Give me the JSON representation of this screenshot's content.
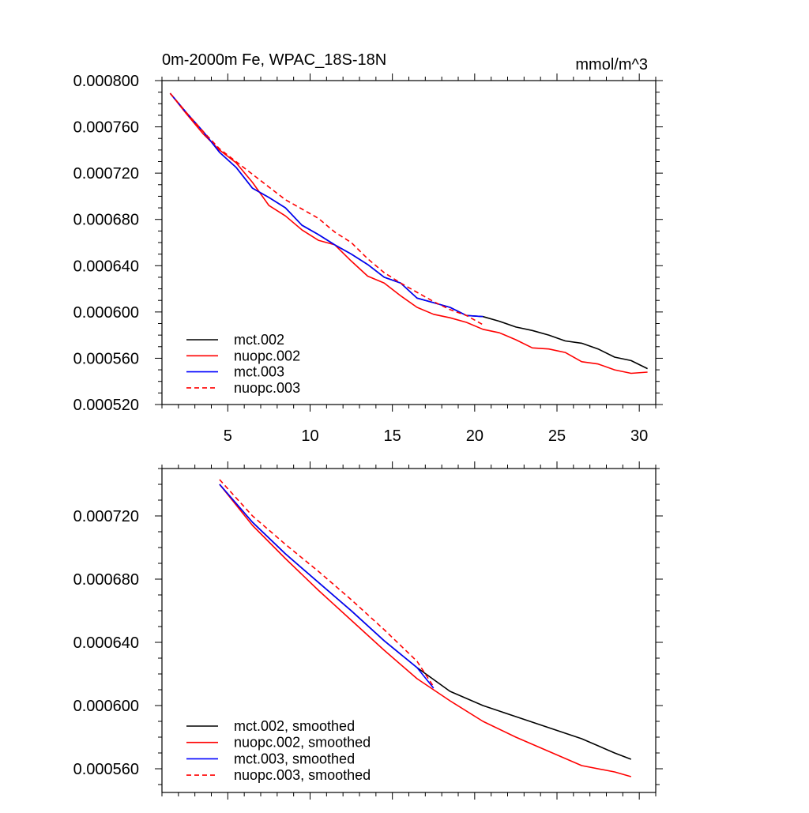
{
  "chart_data": [
    {
      "type": "line",
      "title": "0m-2000m Fe, WPAC_18S-18N",
      "units": "mmol/m^3",
      "xlabel": "",
      "ylabel": "",
      "xlim": [
        1,
        31
      ],
      "ylim": [
        0.00052,
        0.0008
      ],
      "xticks": [
        5,
        10,
        15,
        20,
        25,
        30
      ],
      "xtick_labels": [
        "5",
        "10",
        "15",
        "20",
        "25",
        "30"
      ],
      "yticks": [
        0.00052,
        0.00056,
        0.0006,
        0.00064,
        0.00068,
        0.00072,
        0.00076,
        0.0008
      ],
      "ytick_labels": [
        "0.000520",
        "0.000560",
        "0.000600",
        "0.000640",
        "0.000680",
        "0.000720",
        "0.000760",
        "0.000800"
      ],
      "legend_position": "bottom-left",
      "series": [
        {
          "name": "mct.002",
          "color": "#000000",
          "dash": "solid",
          "x": [
            1.5,
            2.5,
            3.5,
            4.5,
            5.5,
            6.5,
            7.5,
            8.5,
            9.5,
            10.5,
            11.5,
            12.5,
            13.5,
            14.5,
            15.5,
            16.5,
            17.5,
            18.5,
            19.5,
            20.5,
            21.5,
            22.5,
            23.5,
            24.5,
            25.5,
            26.5,
            27.5,
            28.5,
            29.5,
            30.5
          ],
          "values": [
            0.000789,
            0.000772,
            0.000756,
            0.000738,
            0.000725,
            0.000707,
            0.000699,
            0.00069,
            0.000675,
            0.000667,
            0.000658,
            0.00065,
            0.000641,
            0.00063,
            0.000625,
            0.000612,
            0.000608,
            0.000604,
            0.000597,
            0.000596,
            0.000592,
            0.000587,
            0.000584,
            0.00058,
            0.000575,
            0.000573,
            0.000568,
            0.000561,
            0.000558,
            0.000551
          ]
        },
        {
          "name": "nuopc.002",
          "color": "#ff0000",
          "dash": "solid",
          "x": [
            1.5,
            2.5,
            3.5,
            4.5,
            5.5,
            6.5,
            7.5,
            8.5,
            9.5,
            10.5,
            11.5,
            12.5,
            13.5,
            14.5,
            15.5,
            16.5,
            17.5,
            18.5,
            19.5,
            20.5,
            21.5,
            22.5,
            23.5,
            24.5,
            25.5,
            26.5,
            27.5,
            28.5,
            29.5,
            30.5
          ],
          "values": [
            0.000789,
            0.000771,
            0.000754,
            0.00074,
            0.000729,
            0.000712,
            0.000692,
            0.000683,
            0.000671,
            0.000662,
            0.000658,
            0.000644,
            0.000631,
            0.000625,
            0.000614,
            0.000604,
            0.000598,
            0.000595,
            0.000591,
            0.000585,
            0.000582,
            0.000576,
            0.000569,
            0.000568,
            0.000565,
            0.000557,
            0.000555,
            0.00055,
            0.000547,
            0.000548
          ]
        },
        {
          "name": "mct.003",
          "color": "#0000ff",
          "dash": "solid",
          "x": [
            1.5,
            2.5,
            3.5,
            4.5,
            5.5,
            6.5,
            7.5,
            8.5,
            9.5,
            10.5,
            11.5,
            12.5,
            13.5,
            14.5,
            15.5,
            16.5,
            17.5,
            18.5,
            19.5,
            20.5
          ],
          "values": [
            0.000789,
            0.000772,
            0.000756,
            0.000738,
            0.000725,
            0.000707,
            0.000699,
            0.00069,
            0.000675,
            0.000667,
            0.000658,
            0.00065,
            0.000641,
            0.00063,
            0.000625,
            0.000612,
            0.000608,
            0.000604,
            0.000597,
            0.000596
          ]
        },
        {
          "name": "nuopc.003",
          "color": "#ff0000",
          "dash": "dashed",
          "x": [
            1.5,
            2.5,
            3.5,
            4.5,
            5.5,
            6.5,
            7.5,
            8.5,
            9.5,
            10.5,
            11.5,
            12.5,
            13.5,
            14.5,
            15.5,
            16.5,
            17.5,
            18.5,
            19.5,
            20.5
          ],
          "values": [
            0.000789,
            0.000772,
            0.000756,
            0.000741,
            0.00073,
            0.000719,
            0.000708,
            0.000697,
            0.000689,
            0.000681,
            0.000669,
            0.00066,
            0.000646,
            0.000634,
            0.000625,
            0.000617,
            0.000609,
            0.000602,
            0.000597,
            0.000589
          ]
        }
      ]
    },
    {
      "type": "line",
      "title": "",
      "xlabel": "",
      "ylabel": "",
      "xlim": [
        1,
        31
      ],
      "ylim": [
        0.000545,
        0.00075
      ],
      "xticks": [
        5,
        10,
        15,
        20,
        25,
        30
      ],
      "yticks": [
        0.00056,
        0.0006,
        0.00064,
        0.00068,
        0.00072
      ],
      "ytick_labels": [
        "0.000560",
        "0.000600",
        "0.000640",
        "0.000680",
        "0.000720"
      ],
      "legend_position": "bottom-left",
      "series": [
        {
          "name": "mct.002, smoothed",
          "color": "#000000",
          "dash": "solid",
          "x": [
            4.5,
            6.5,
            8.5,
            10.5,
            12.5,
            14.5,
            16.5,
            18.5,
            20.5,
            22.5,
            24.5,
            26.5,
            28.5,
            29.5
          ],
          "values": [
            0.00074,
            0.000716,
            0.000696,
            0.000678,
            0.00066,
            0.000641,
            0.000624,
            0.000609,
            0.0006,
            0.000593,
            0.000586,
            0.000579,
            0.00057,
            0.000566
          ]
        },
        {
          "name": "nuopc.002, smoothed",
          "color": "#ff0000",
          "dash": "solid",
          "x": [
            4.5,
            6.5,
            8.5,
            10.5,
            12.5,
            14.5,
            16.5,
            18.5,
            20.5,
            22.5,
            24.5,
            26.5,
            28.5,
            29.5
          ],
          "values": [
            0.00074,
            0.000714,
            0.000693,
            0.000673,
            0.000654,
            0.000635,
            0.000617,
            0.000603,
            0.00059,
            0.00058,
            0.000571,
            0.000562,
            0.000558,
            0.000555
          ]
        },
        {
          "name": "mct.003, smoothed",
          "color": "#0000ff",
          "dash": "solid",
          "x": [
            4.5,
            6.5,
            8.5,
            10.5,
            12.5,
            14.5,
            16.5,
            17.5
          ],
          "values": [
            0.00074,
            0.000716,
            0.000696,
            0.000678,
            0.00066,
            0.000641,
            0.000624,
            0.000611
          ]
        },
        {
          "name": "nuopc.003, smoothed",
          "color": "#ff0000",
          "dash": "dashed",
          "x": [
            4.5,
            6.5,
            8.5,
            10.5,
            12.5,
            14.5,
            16.5,
            17.5
          ],
          "values": [
            0.000743,
            0.00072,
            0.000702,
            0.000685,
            0.000667,
            0.000648,
            0.000628,
            0.000612
          ]
        }
      ]
    }
  ]
}
